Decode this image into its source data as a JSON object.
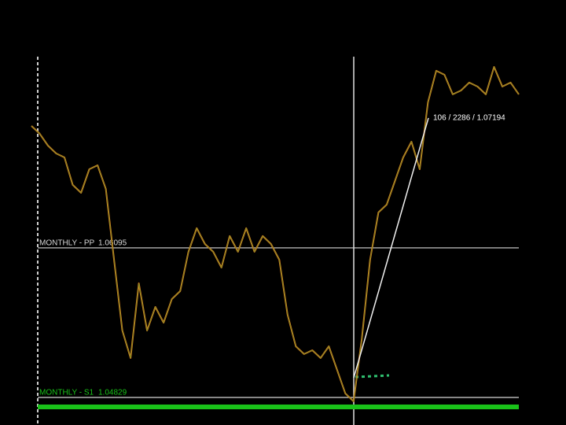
{
  "chart_data": {
    "type": "line",
    "series": [
      {
        "color": "#e07a1f",
        "values": [
          1.07127,
          1.07061,
          1.06961,
          1.06894,
          1.06861,
          1.06628,
          1.06561,
          1.06761,
          1.06794,
          1.06595,
          1.05995,
          1.05396,
          1.05163,
          1.05795,
          1.05396,
          1.05595,
          1.05462,
          1.05662,
          1.05729,
          1.06062,
          1.06262,
          1.06128,
          1.06062,
          1.05928,
          1.06195,
          1.06062,
          1.06262,
          1.06062,
          1.06195,
          1.06128,
          1.05995,
          1.05529,
          1.05262,
          1.05196,
          1.05229,
          1.05163,
          1.05262,
          1.05063,
          1.04863,
          1.04796,
          1.05329,
          1.05995,
          1.06395,
          1.06461,
          1.06661,
          1.06861,
          1.06994,
          1.06761,
          1.07327,
          1.07594,
          1.0756,
          1.07394,
          1.07427,
          1.07494,
          1.0746,
          1.07394,
          1.07627,
          1.0746,
          1.07494,
          1.07394
        ]
      }
    ],
    "ylim": [
      1.04596,
      1.08193
    ],
    "levels": [
      {
        "name": "MONTHLY - PP",
        "value": 1.06095,
        "color": "#d8d8d8"
      },
      {
        "name": "MONTHLY - S1",
        "value": 1.04829,
        "color": "#d8d8d8"
      }
    ],
    "trendline": {
      "start": 1.04996,
      "end": 1.07194,
      "label": "106 / 2286 / 1.07194"
    }
  }
}
